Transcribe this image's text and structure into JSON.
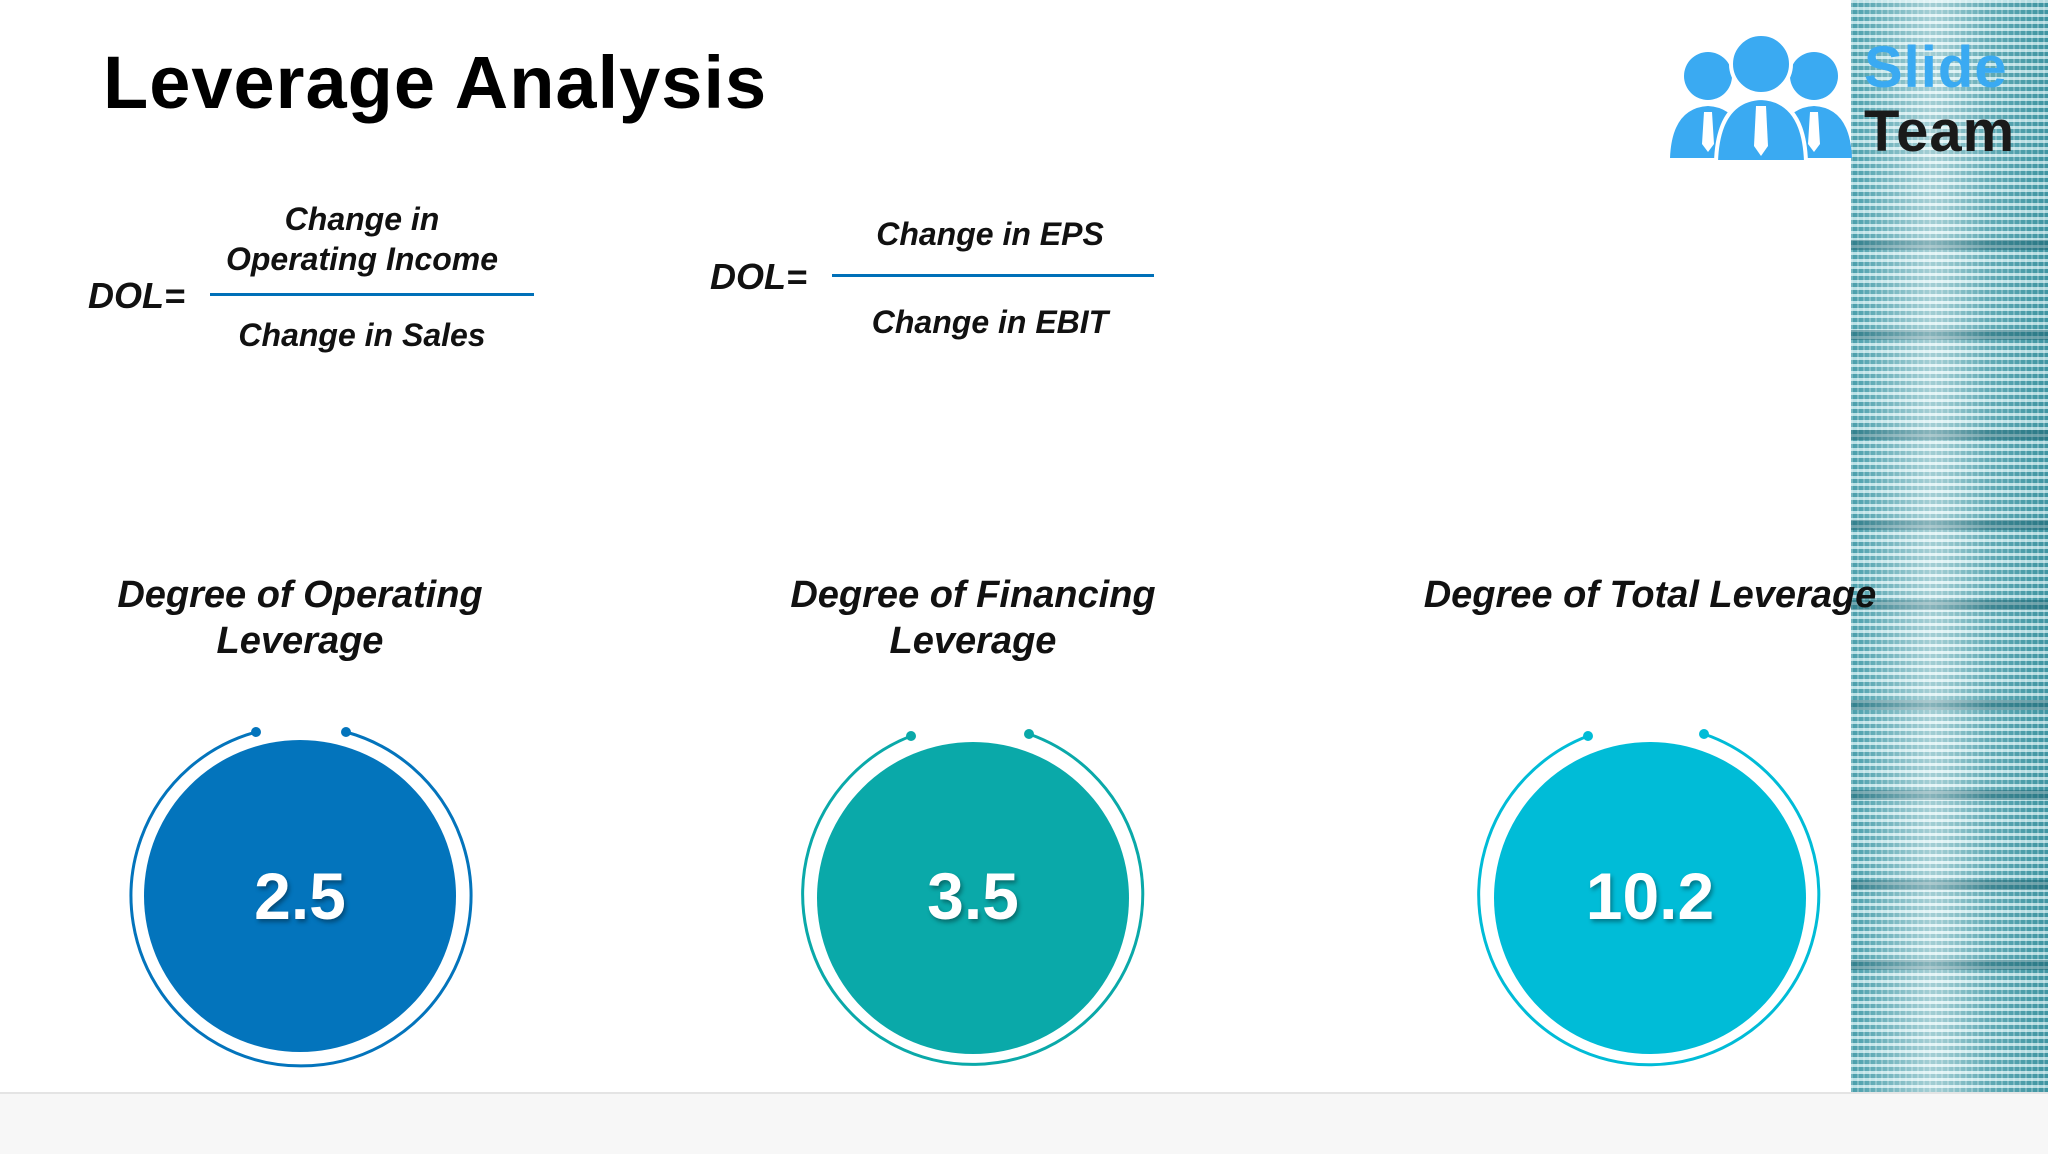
{
  "title": "Leverage Analysis",
  "logo": {
    "line1": "Slide",
    "line2": "Team",
    "icon": "people-group-icon"
  },
  "formulas": [
    {
      "lhs": "DOL=",
      "numerator": "Change in Operating Income",
      "denominator": "Change in Sales"
    },
    {
      "lhs": "DOL=",
      "numerator": "Change in EPS",
      "denominator": "Change in EBIT"
    }
  ],
  "metrics": [
    {
      "title": "Degree of Operating Leverage",
      "value": "2.5",
      "color": "#0374bc"
    },
    {
      "title": "Degree of Financing Leverage",
      "value": "3.5",
      "color": "#0aa9a9"
    },
    {
      "title": "Degree of Total Leverage",
      "value": "10.2",
      "color": "#00bcd7"
    }
  ],
  "colors": {
    "accent": "#0070b8",
    "logo_blue": "#3aaaf2"
  }
}
